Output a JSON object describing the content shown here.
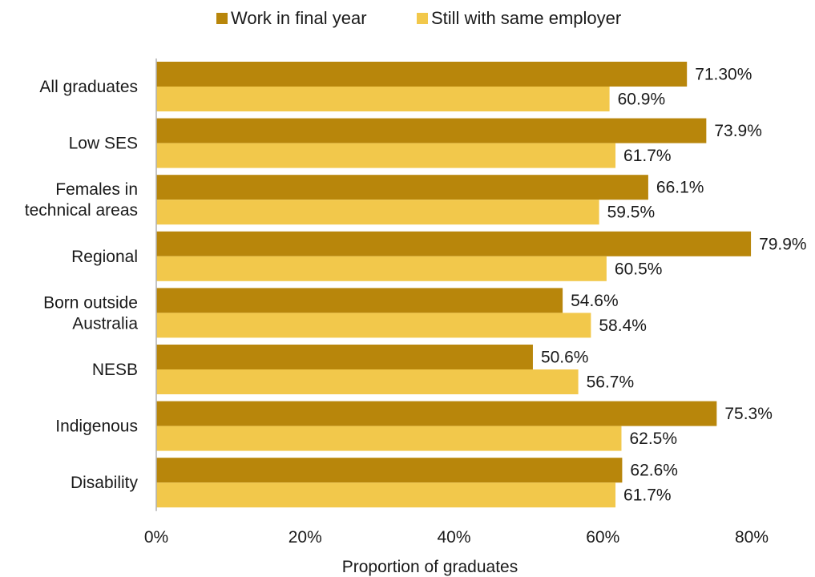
{
  "chart_data": {
    "type": "bar",
    "orientation": "horizontal",
    "categories": [
      [
        "All graduates"
      ],
      [
        "Low SES"
      ],
      [
        "Females in",
        "technical areas"
      ],
      [
        "Regional"
      ],
      [
        "Born outside",
        "Australia"
      ],
      [
        "NESB"
      ],
      [
        "Indigenous"
      ],
      [
        "Disability"
      ]
    ],
    "series": [
      {
        "name": "Work in final year",
        "color": "#B8860B",
        "values": [
          71.3,
          73.9,
          66.1,
          79.9,
          54.6,
          50.6,
          75.3,
          62.6
        ],
        "labels": [
          "71.30%",
          "73.9%",
          "66.1%",
          "79.9%",
          "54.6%",
          "50.6%",
          "75.3%",
          "62.6%"
        ]
      },
      {
        "name": "Still with same employer",
        "color": "#F2C84B",
        "values": [
          60.9,
          61.7,
          59.5,
          60.5,
          58.4,
          56.7,
          62.5,
          61.7
        ],
        "labels": [
          "60.9%",
          "61.7%",
          "59.5%",
          "60.5%",
          "58.4%",
          "56.7%",
          "62.5%",
          "61.7%"
        ]
      }
    ],
    "xlim": [
      0,
      80
    ],
    "xticks": [
      "0%",
      "20%",
      "40%",
      "60%",
      "80%"
    ],
    "xlabel": "Proportion of graduates",
    "legend_position": "top",
    "grid": false
  }
}
